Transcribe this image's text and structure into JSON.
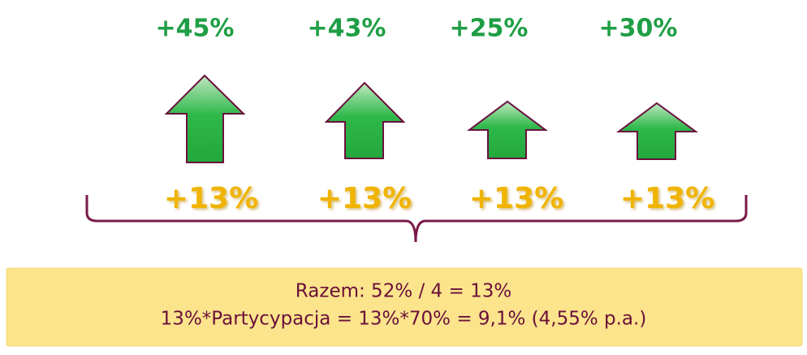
{
  "top_labels": [
    "+45%",
    "+43%",
    "+25%",
    "+30%"
  ],
  "bottom_labels": [
    "+13%",
    "+13%",
    "+13%",
    "+13%"
  ],
  "summary": {
    "lines": [
      "Razem: 52% / 4 = 13%",
      "13%*Partycypacja = 13%*70% = 9,1% (4,55% p.a.)"
    ]
  }
}
